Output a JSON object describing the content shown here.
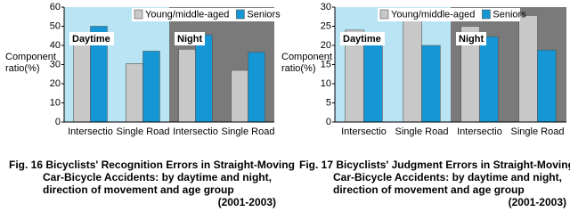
{
  "chart_data": [
    {
      "type": "bar",
      "y_label": [
        "Component",
        "ratio(%)"
      ],
      "categories": [
        "Intersectio",
        "Single Road",
        "Intersectio",
        "Single Road"
      ],
      "period_labels": [
        "Daytime",
        "Night"
      ],
      "period_colors": [
        "#b8e4f4",
        "#7a7a7a"
      ],
      "series": [
        {
          "name": "Young/middle-aged",
          "color": "#c8c8c8",
          "values": [
            45.5,
            30.5,
            38,
            27
          ]
        },
        {
          "name": "Seniors",
          "color": "#1497d4",
          "values": [
            50,
            37,
            45.5,
            36.5
          ]
        }
      ],
      "ylim": [
        0,
        60
      ],
      "yticks": [
        0,
        10,
        20,
        30,
        40,
        50,
        60
      ],
      "caption": [
        "Fig. 16  Bicyclists' Recognition Errors in Straight-Moving",
        "Car-Bicycle Accidents: by daytime and night,",
        "direction of movement and age group",
        "(2001-2003)"
      ]
    },
    {
      "type": "bar",
      "y_label": [
        "Component",
        "ratio(%)"
      ],
      "categories": [
        "Intersectio",
        "Single Road",
        "Intersectio",
        "Single Road"
      ],
      "period_labels": [
        "Daytime",
        "Night"
      ],
      "period_colors": [
        "#b8e4f4",
        "#7a7a7a"
      ],
      "series": [
        {
          "name": "Young/middle-aged",
          "color": "#c8c8c8",
          "values": [
            24,
            26.5,
            25,
            27.8
          ]
        },
        {
          "name": "Seniors",
          "color": "#1497d4",
          "values": [
            21.3,
            20,
            22.3,
            18.8
          ]
        }
      ],
      "ylim": [
        0,
        30
      ],
      "yticks": [
        0,
        5,
        10,
        15,
        20,
        25,
        30
      ],
      "caption": [
        "Fig. 17  Bicyclists' Judgment Errors in Straight-Moving",
        "Car-Bicycle Accidents: by daytime and night,",
        "direction of movement and age group",
        "(2001-2003)"
      ]
    }
  ]
}
